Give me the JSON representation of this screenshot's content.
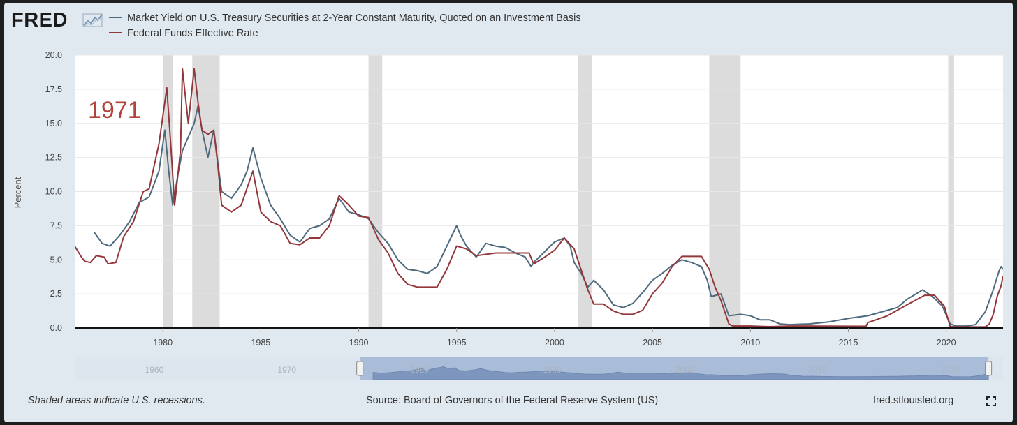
{
  "header": {
    "logo_text": "FRED"
  },
  "chart_data": {
    "type": "line",
    "ylabel": "Percent",
    "ylim": [
      0,
      20
    ],
    "y_ticks": [
      "0.0",
      "2.5",
      "5.0",
      "7.5",
      "10.0",
      "12.5",
      "15.0",
      "17.5",
      "20.0"
    ],
    "x_ticks": [
      "1980",
      "1985",
      "1990",
      "1995",
      "2000",
      "2005",
      "2010",
      "2015",
      "2020"
    ],
    "x_tick_values": [
      1980,
      1985,
      1990,
      1995,
      2000,
      2005,
      2010,
      2015,
      2020
    ],
    "xlim": [
      1975.5,
      2022.9
    ],
    "annotation": "1971",
    "recessions": [
      [
        1980.0,
        1980.5
      ],
      [
        1981.5,
        1982.9
      ],
      [
        1990.5,
        1991.2
      ],
      [
        2001.2,
        2001.9
      ],
      [
        2007.9,
        2009.5
      ],
      [
        2020.1,
        2020.4
      ]
    ],
    "series": [
      {
        "name": "Market Yield on U.S. Treasury Securities at 2-Year Constant Maturity, Quoted on an Investment Basis",
        "color": "#4e6a7f",
        "points": [
          [
            1976.5,
            7.0
          ],
          [
            1976.9,
            6.2
          ],
          [
            1977.3,
            6.0
          ],
          [
            1977.8,
            6.8
          ],
          [
            1978.3,
            7.8
          ],
          [
            1978.8,
            9.2
          ],
          [
            1979.3,
            9.6
          ],
          [
            1979.8,
            11.5
          ],
          [
            1980.1,
            14.5
          ],
          [
            1980.3,
            11.5
          ],
          [
            1980.5,
            9.0
          ],
          [
            1980.8,
            11.5
          ],
          [
            1981.0,
            13.0
          ],
          [
            1981.3,
            14.0
          ],
          [
            1981.6,
            15.0
          ],
          [
            1981.8,
            16.3
          ],
          [
            1982.0,
            14.5
          ],
          [
            1982.3,
            12.5
          ],
          [
            1982.6,
            14.5
          ],
          [
            1982.8,
            12.2
          ],
          [
            1983.0,
            10.0
          ],
          [
            1983.5,
            9.5
          ],
          [
            1984.0,
            10.5
          ],
          [
            1984.3,
            11.5
          ],
          [
            1984.6,
            13.2
          ],
          [
            1985.0,
            11.0
          ],
          [
            1985.5,
            9.0
          ],
          [
            1986.0,
            8.0
          ],
          [
            1986.5,
            6.8
          ],
          [
            1987.0,
            6.3
          ],
          [
            1987.5,
            7.3
          ],
          [
            1988.0,
            7.5
          ],
          [
            1988.5,
            8.0
          ],
          [
            1989.0,
            9.5
          ],
          [
            1989.5,
            8.5
          ],
          [
            1990.0,
            8.3
          ],
          [
            1990.5,
            8.0
          ],
          [
            1991.0,
            7.0
          ],
          [
            1991.5,
            6.2
          ],
          [
            1992.0,
            5.0
          ],
          [
            1992.5,
            4.3
          ],
          [
            1993.0,
            4.2
          ],
          [
            1993.5,
            4.0
          ],
          [
            1994.0,
            4.5
          ],
          [
            1994.5,
            6.0
          ],
          [
            1995.0,
            7.5
          ],
          [
            1995.2,
            6.8
          ],
          [
            1995.5,
            6.0
          ],
          [
            1996.0,
            5.2
          ],
          [
            1996.5,
            6.2
          ],
          [
            1997.0,
            6.0
          ],
          [
            1997.5,
            5.9
          ],
          [
            1998.0,
            5.5
          ],
          [
            1998.5,
            5.2
          ],
          [
            1998.8,
            4.5
          ],
          [
            1999.0,
            4.9
          ],
          [
            1999.5,
            5.6
          ],
          [
            2000.0,
            6.3
          ],
          [
            2000.5,
            6.6
          ],
          [
            2000.8,
            6.0
          ],
          [
            2001.0,
            4.8
          ],
          [
            2001.4,
            3.9
          ],
          [
            2001.7,
            3.0
          ],
          [
            2002.0,
            3.5
          ],
          [
            2002.5,
            2.8
          ],
          [
            2003.0,
            1.7
          ],
          [
            2003.5,
            1.5
          ],
          [
            2004.0,
            1.8
          ],
          [
            2004.5,
            2.6
          ],
          [
            2005.0,
            3.5
          ],
          [
            2005.5,
            4.0
          ],
          [
            2006.0,
            4.6
          ],
          [
            2006.5,
            5.0
          ],
          [
            2007.0,
            4.8
          ],
          [
            2007.5,
            4.5
          ],
          [
            2007.8,
            3.5
          ],
          [
            2008.0,
            2.3
          ],
          [
            2008.5,
            2.5
          ],
          [
            2008.9,
            0.9
          ],
          [
            2009.5,
            1.0
          ],
          [
            2010.0,
            0.9
          ],
          [
            2010.5,
            0.6
          ],
          [
            2011.0,
            0.6
          ],
          [
            2011.5,
            0.3
          ],
          [
            2012.0,
            0.25
          ],
          [
            2013.0,
            0.3
          ],
          [
            2014.0,
            0.45
          ],
          [
            2015.0,
            0.7
          ],
          [
            2016.0,
            0.9
          ],
          [
            2017.0,
            1.3
          ],
          [
            2017.5,
            1.5
          ],
          [
            2018.0,
            2.1
          ],
          [
            2018.8,
            2.8
          ],
          [
            2019.3,
            2.3
          ],
          [
            2019.8,
            1.6
          ],
          [
            2020.2,
            0.3
          ],
          [
            2020.5,
            0.15
          ],
          [
            2021.0,
            0.15
          ],
          [
            2021.5,
            0.25
          ],
          [
            2022.0,
            1.2
          ],
          [
            2022.4,
            2.8
          ],
          [
            2022.7,
            4.2
          ],
          [
            2022.8,
            4.5
          ],
          [
            2022.9,
            4.3
          ]
        ]
      },
      {
        "name": "Federal Funds Effective Rate",
        "color": "#93373b",
        "points": [
          [
            1975.5,
            6.0
          ],
          [
            1975.8,
            5.3
          ],
          [
            1976.0,
            4.9
          ],
          [
            1976.3,
            4.8
          ],
          [
            1976.6,
            5.3
          ],
          [
            1977.0,
            5.2
          ],
          [
            1977.2,
            4.7
          ],
          [
            1977.6,
            4.8
          ],
          [
            1978.0,
            6.7
          ],
          [
            1978.5,
            7.8
          ],
          [
            1979.0,
            10.0
          ],
          [
            1979.3,
            10.2
          ],
          [
            1979.8,
            13.5
          ],
          [
            1980.2,
            17.6
          ],
          [
            1980.4,
            13.5
          ],
          [
            1980.6,
            9.0
          ],
          [
            1980.9,
            13.0
          ],
          [
            1981.0,
            19.0
          ],
          [
            1981.3,
            15.0
          ],
          [
            1981.6,
            19.0
          ],
          [
            1981.8,
            16.5
          ],
          [
            1982.0,
            14.5
          ],
          [
            1982.3,
            14.2
          ],
          [
            1982.6,
            14.5
          ],
          [
            1982.8,
            12.0
          ],
          [
            1983.0,
            9.0
          ],
          [
            1983.5,
            8.5
          ],
          [
            1984.0,
            9.0
          ],
          [
            1984.6,
            11.5
          ],
          [
            1985.0,
            8.5
          ],
          [
            1985.5,
            7.8
          ],
          [
            1986.0,
            7.5
          ],
          [
            1986.5,
            6.2
          ],
          [
            1987.0,
            6.1
          ],
          [
            1987.5,
            6.6
          ],
          [
            1988.0,
            6.6
          ],
          [
            1988.5,
            7.5
          ],
          [
            1989.0,
            9.7
          ],
          [
            1989.5,
            9.0
          ],
          [
            1990.0,
            8.2
          ],
          [
            1990.5,
            8.1
          ],
          [
            1991.0,
            6.5
          ],
          [
            1991.5,
            5.5
          ],
          [
            1992.0,
            4.0
          ],
          [
            1992.5,
            3.2
          ],
          [
            1993.0,
            3.0
          ],
          [
            1993.5,
            3.0
          ],
          [
            1994.0,
            3.0
          ],
          [
            1994.5,
            4.3
          ],
          [
            1995.0,
            6.0
          ],
          [
            1995.5,
            5.8
          ],
          [
            1996.0,
            5.3
          ],
          [
            1997.0,
            5.5
          ],
          [
            1998.0,
            5.5
          ],
          [
            1998.7,
            5.5
          ],
          [
            1998.9,
            4.8
          ],
          [
            1999.0,
            4.75
          ],
          [
            1999.5,
            5.2
          ],
          [
            2000.0,
            5.7
          ],
          [
            2000.5,
            6.6
          ],
          [
            2001.0,
            5.8
          ],
          [
            2001.3,
            4.5
          ],
          [
            2001.7,
            2.8
          ],
          [
            2002.0,
            1.75
          ],
          [
            2002.5,
            1.75
          ],
          [
            2003.0,
            1.25
          ],
          [
            2003.5,
            1.0
          ],
          [
            2004.0,
            1.0
          ],
          [
            2004.5,
            1.3
          ],
          [
            2005.0,
            2.5
          ],
          [
            2005.5,
            3.3
          ],
          [
            2006.0,
            4.5
          ],
          [
            2006.5,
            5.25
          ],
          [
            2007.0,
            5.25
          ],
          [
            2007.5,
            5.25
          ],
          [
            2007.9,
            4.3
          ],
          [
            2008.2,
            3.0
          ],
          [
            2008.5,
            2.0
          ],
          [
            2008.9,
            0.3
          ],
          [
            2009.1,
            0.15
          ],
          [
            2010.0,
            0.15
          ],
          [
            2011.0,
            0.1
          ],
          [
            2012.0,
            0.15
          ],
          [
            2015.9,
            0.13
          ],
          [
            2016.0,
            0.4
          ],
          [
            2017.0,
            0.9
          ],
          [
            2018.0,
            1.7
          ],
          [
            2018.9,
            2.4
          ],
          [
            2019.4,
            2.4
          ],
          [
            2019.9,
            1.6
          ],
          [
            2020.2,
            0.1
          ],
          [
            2021.0,
            0.08
          ],
          [
            2022.0,
            0.08
          ],
          [
            2022.2,
            0.3
          ],
          [
            2022.4,
            1.0
          ],
          [
            2022.6,
            2.3
          ],
          [
            2022.8,
            3.1
          ],
          [
            2022.9,
            3.8
          ]
        ]
      }
    ]
  },
  "navigator": {
    "labels": [
      "1960",
      "1970",
      "1980",
      "1990",
      "2000",
      "2010",
      "2020"
    ],
    "label_years": [
      1960,
      1970,
      1980,
      1990,
      2000,
      2010,
      2020
    ],
    "min_year": 1954,
    "max_year": 2024,
    "selected_range": [
      1975.5,
      2022.9
    ]
  },
  "footer": {
    "recession_note": "Shaded areas indicate U.S. recessions.",
    "source": "Source: Board of Governors of the Federal Reserve System (US)",
    "site": "fred.stlouisfed.org"
  }
}
